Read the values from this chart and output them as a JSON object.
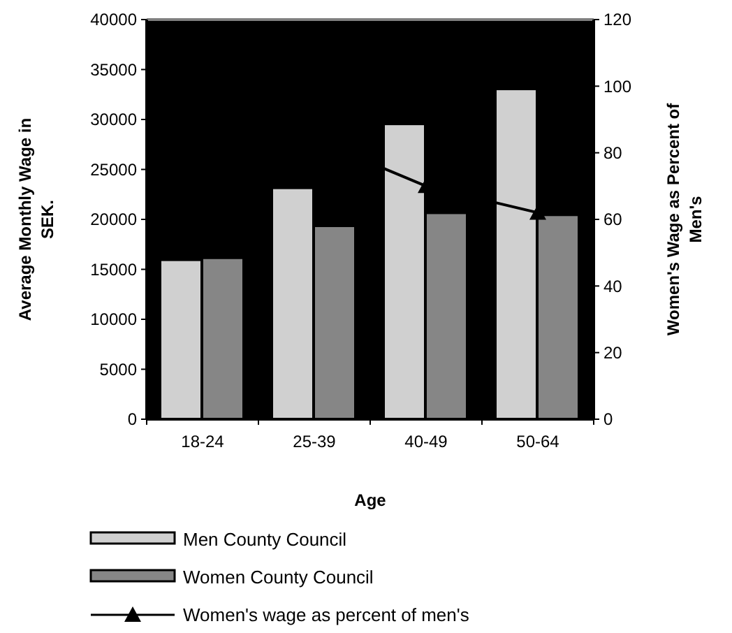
{
  "chart_data": {
    "type": "bar",
    "xlabel": "Age",
    "ylabel": "Average Monthly Wage in SEK.",
    "y2label": "Women's Wage as Percent of Men's",
    "categories": [
      "18-24",
      "25-39",
      "40-49",
      "50-64"
    ],
    "series": [
      {
        "name": "Men County Council",
        "color": "#d0d0d0",
        "values": [
          15900,
          23100,
          29500,
          33000
        ]
      },
      {
        "name": "Women County Council",
        "color": "#868686",
        "values": [
          16100,
          19300,
          20600,
          20400
        ]
      },
      {
        "name": "Women's wage as percent of men's",
        "type": "line",
        "axis": "y2",
        "color": "#000000",
        "marker": "triangle",
        "values": [
          101,
          84,
          70,
          62
        ]
      }
    ],
    "ylim": [
      0,
      40000
    ],
    "yticks": [
      0,
      5000,
      10000,
      15000,
      20000,
      25000,
      30000,
      35000,
      40000
    ],
    "y2lim": [
      0,
      120
    ],
    "y2ticks": [
      0,
      20,
      40,
      60,
      80,
      100,
      120
    ],
    "grid": false,
    "legend": "bottom"
  }
}
